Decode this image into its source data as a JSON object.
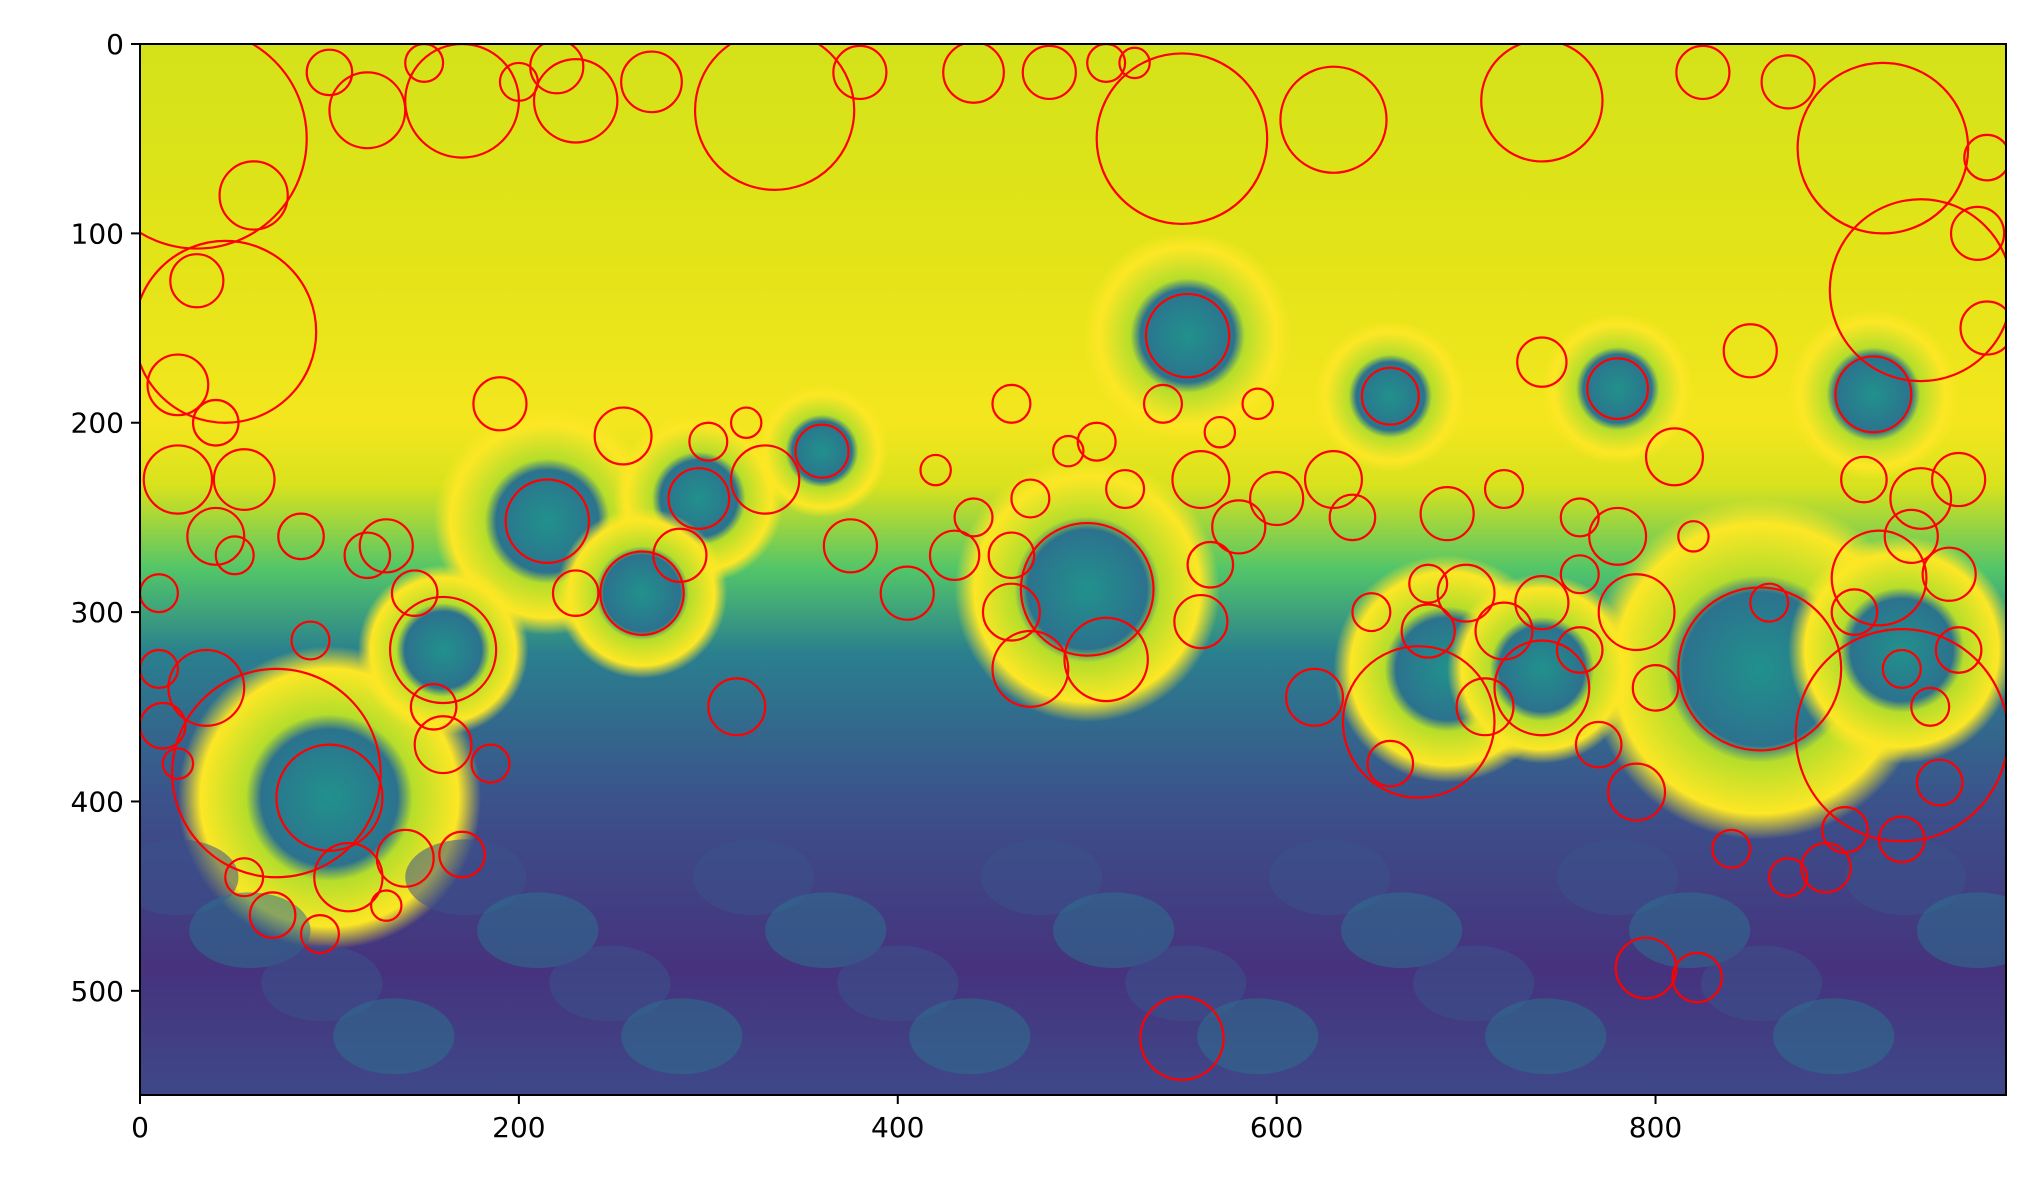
{
  "image": {
    "x_range": [
      0,
      985
    ],
    "y_range": [
      0,
      555
    ],
    "colormap": "viridis",
    "description_hidden": true
  },
  "axes": {
    "x_ticks": [
      {
        "value": 0,
        "label": "0"
      },
      {
        "value": 200,
        "label": "200"
      },
      {
        "value": 400,
        "label": "400"
      },
      {
        "value": 600,
        "label": "600"
      },
      {
        "value": 800,
        "label": "800"
      }
    ],
    "y_ticks": [
      {
        "value": 0,
        "label": "0"
      },
      {
        "value": 100,
        "label": "100"
      },
      {
        "value": 200,
        "label": "200"
      },
      {
        "value": 300,
        "label": "300"
      },
      {
        "value": 400,
        "label": "400"
      },
      {
        "value": 500,
        "label": "500"
      }
    ]
  },
  "overlay": {
    "circle_color": "#ff0000",
    "circles": [
      [
        855,
        330,
        43
      ],
      [
        72,
        385,
        55
      ],
      [
        930,
        365,
        56
      ],
      [
        675,
        358,
        40
      ],
      [
        100,
        398,
        28
      ],
      [
        500,
        288,
        35
      ],
      [
        918,
        282,
        25
      ],
      [
        553,
        154,
        22
      ],
      [
        215,
        252,
        22
      ],
      [
        660,
        186,
        15
      ],
      [
        810,
        218,
        15
      ],
      [
        780,
        182,
        16
      ],
      [
        850,
        162,
        14
      ],
      [
        915,
        185,
        20
      ],
      [
        740,
        168,
        13
      ],
      [
        295,
        240,
        16
      ],
      [
        360,
        215,
        14
      ],
      [
        190,
        190,
        14
      ],
      [
        255,
        207,
        15
      ],
      [
        265,
        290,
        22
      ],
      [
        160,
        320,
        28
      ],
      [
        510,
        325,
        22
      ],
      [
        740,
        340,
        25
      ],
      [
        700,
        290,
        15
      ],
      [
        580,
        255,
        14
      ],
      [
        550,
        525,
        22
      ],
      [
        795,
        488,
        16
      ],
      [
        822,
        493,
        13
      ],
      [
        315,
        350,
        15
      ],
      [
        375,
        265,
        14
      ],
      [
        430,
        270,
        13
      ],
      [
        690,
        248,
        14
      ],
      [
        630,
        230,
        15
      ],
      [
        940,
        240,
        16
      ],
      [
        130,
        265,
        14
      ],
      [
        35,
        340,
        20
      ],
      [
        160,
        370,
        15
      ],
      [
        170,
        428,
        12
      ],
      [
        110,
        440,
        18
      ],
      [
        140,
        430,
        15
      ],
      [
        790,
        395,
        15
      ],
      [
        890,
        435,
        13
      ],
      [
        900,
        415,
        12
      ],
      [
        930,
        420,
        12
      ],
      [
        950,
        390,
        12
      ],
      [
        960,
        320,
        12
      ],
      [
        960,
        230,
        14
      ],
      [
        975,
        150,
        14
      ],
      [
        970,
        100,
        14
      ],
      [
        975,
        60,
        12
      ],
      [
        940,
        130,
        48
      ],
      [
        920,
        55,
        45
      ],
      [
        45,
        152,
        48
      ],
      [
        30,
        50,
        58
      ],
      [
        335,
        35,
        42
      ],
      [
        550,
        50,
        45
      ],
      [
        170,
        30,
        30
      ],
      [
        740,
        30,
        32
      ],
      [
        630,
        40,
        28
      ],
      [
        220,
        12,
        14
      ],
      [
        270,
        20,
        16
      ],
      [
        440,
        15,
        16
      ],
      [
        480,
        15,
        14
      ],
      [
        380,
        15,
        14
      ],
      [
        825,
        15,
        14
      ],
      [
        870,
        20,
        14
      ],
      [
        20,
        180,
        16
      ],
      [
        20,
        230,
        18
      ],
      [
        40,
        260,
        15
      ],
      [
        55,
        230,
        16
      ],
      [
        85,
        260,
        12
      ],
      [
        120,
        270,
        12
      ],
      [
        145,
        290,
        12
      ],
      [
        155,
        350,
        12
      ],
      [
        185,
        380,
        10
      ],
      [
        90,
        315,
        10
      ],
      [
        50,
        270,
        10
      ],
      [
        230,
        290,
        12
      ],
      [
        285,
        270,
        14
      ],
      [
        330,
        230,
        18
      ],
      [
        460,
        270,
        12
      ],
      [
        470,
        240,
        10
      ],
      [
        490,
        215,
        8
      ],
      [
        520,
        235,
        10
      ],
      [
        540,
        190,
        10
      ],
      [
        570,
        205,
        8
      ],
      [
        590,
        190,
        8
      ],
      [
        440,
        250,
        10
      ],
      [
        420,
        225,
        8
      ],
      [
        405,
        290,
        14
      ],
      [
        470,
        330,
        20
      ],
      [
        460,
        300,
        15
      ],
      [
        565,
        275,
        12
      ],
      [
        560,
        230,
        15
      ],
      [
        650,
        300,
        10
      ],
      [
        680,
        310,
        14
      ],
      [
        720,
        310,
        15
      ],
      [
        710,
        350,
        15
      ],
      [
        760,
        320,
        12
      ],
      [
        780,
        260,
        15
      ],
      [
        790,
        300,
        20
      ],
      [
        800,
        340,
        12
      ],
      [
        770,
        370,
        12
      ],
      [
        720,
        235,
        10
      ],
      [
        760,
        250,
        10
      ],
      [
        640,
        250,
        12
      ],
      [
        620,
        345,
        15
      ],
      [
        660,
        380,
        12
      ],
      [
        680,
        285,
        10
      ],
      [
        740,
        295,
        14
      ],
      [
        760,
        280,
        10
      ],
      [
        820,
        260,
        8
      ],
      [
        860,
        295,
        10
      ],
      [
        870,
        440,
        10
      ],
      [
        840,
        425,
        10
      ],
      [
        300,
        210,
        10
      ],
      [
        320,
        200,
        8
      ],
      [
        230,
        30,
        22
      ],
      [
        120,
        35,
        20
      ],
      [
        60,
        80,
        18
      ],
      [
        30,
        125,
        14
      ],
      [
        40,
        200,
        12
      ],
      [
        10,
        290,
        10
      ],
      [
        10,
        330,
        10
      ],
      [
        12,
        360,
        12
      ],
      [
        20,
        380,
        8
      ],
      [
        55,
        440,
        10
      ],
      [
        70,
        460,
        12
      ],
      [
        95,
        470,
        10
      ],
      [
        130,
        455,
        8
      ],
      [
        200,
        20,
        10
      ],
      [
        150,
        10,
        10
      ],
      [
        100,
        15,
        12
      ],
      [
        460,
        190,
        10
      ],
      [
        505,
        210,
        10
      ],
      [
        510,
        10,
        10
      ],
      [
        525,
        10,
        8
      ],
      [
        600,
        240,
        14
      ],
      [
        560,
        305,
        14
      ],
      [
        905,
        300,
        12
      ],
      [
        930,
        330,
        10
      ],
      [
        945,
        350,
        10
      ],
      [
        955,
        280,
        14
      ],
      [
        935,
        260,
        14
      ],
      [
        910,
        230,
        12
      ]
    ]
  }
}
